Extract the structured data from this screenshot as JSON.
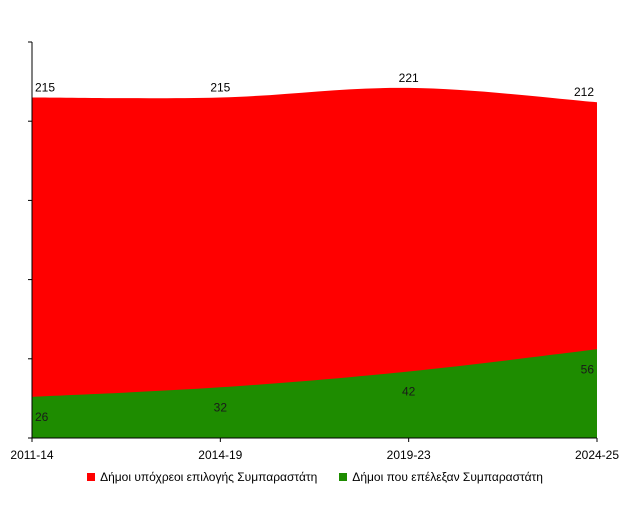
{
  "chart_data": {
    "type": "area",
    "categories": [
      "2011-14",
      "2014-19",
      "2019-23",
      "2024-25"
    ],
    "series": [
      {
        "name": "Δήμοι υπόχρεοι επιλογής Συμπαραστάτη",
        "values": [
          215,
          215,
          221,
          212
        ],
        "color": "#ff0000"
      },
      {
        "name": "Δήμοι που επέλεξαν Συμπαραστάτη",
        "values": [
          26,
          32,
          42,
          56
        ],
        "color": "#1e8c00"
      }
    ],
    "title": "",
    "xlabel": "",
    "ylabel": "",
    "ylim": [
      0,
      250
    ],
    "grid": false,
    "legend_position": "bottom"
  }
}
